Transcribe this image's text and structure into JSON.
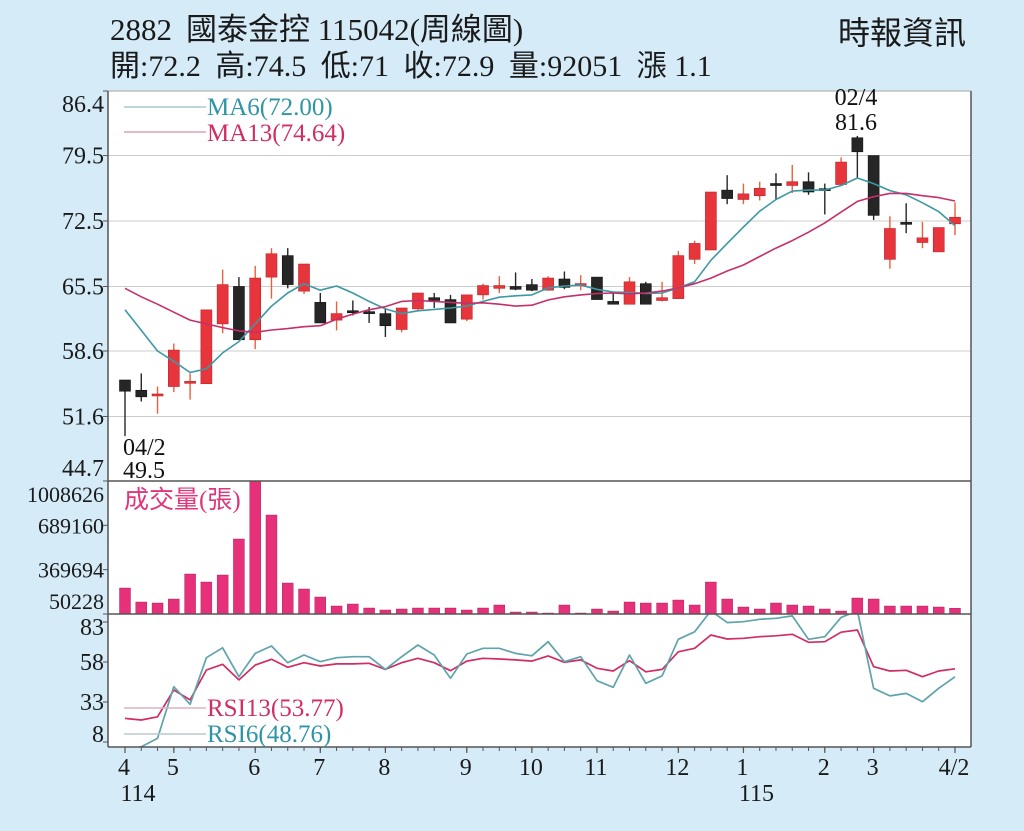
{
  "header": {
    "code": "2882",
    "name": "國泰金控",
    "date": "115042",
    "period": "(周線圖)",
    "source": "時報資訊",
    "quote": [
      {
        "label": "開:",
        "value": "72.2"
      },
      {
        "label": "高:",
        "value": "74.5"
      },
      {
        "label": "低:",
        "value": "71"
      },
      {
        "label": "收:",
        "value": "72.9"
      },
      {
        "label": "量:",
        "value": "92051"
      },
      {
        "label": "漲 ",
        "value": "1.1"
      }
    ]
  },
  "colors": {
    "background": "#d5ebf8",
    "plot_bg": "#ffffff",
    "up": "#e8353c",
    "up_edge": "#b8262c",
    "up_wick": "#e8603c",
    "down": "#262626",
    "grid": "#cccccc",
    "frame": "#555555"
  },
  "chart_data": [
    {
      "id": "price",
      "type": "candlestick",
      "title": "2882 國泰金控 115042(周線圖)",
      "xlabel": "",
      "ylabel": "",
      "ylim": [
        44.7,
        86.4
      ],
      "yticks": [
        86.4,
        79.5,
        72.5,
        65.5,
        58.6,
        51.6,
        44.7
      ],
      "grid": true,
      "ohlc_fields": [
        "open",
        "high",
        "low",
        "close"
      ],
      "ohlc": [
        [
          55.5,
          55.5,
          49.5,
          54.3
        ],
        [
          54.4,
          56.2,
          53.2,
          53.7
        ],
        [
          53.8,
          54.8,
          51.9,
          54.0
        ],
        [
          54.8,
          59.4,
          54.2,
          58.7
        ],
        [
          55.2,
          56.2,
          53.4,
          55.3
        ],
        [
          55.1,
          63.0,
          55.1,
          63.0
        ],
        [
          61.5,
          67.3,
          60.5,
          65.7
        ],
        [
          65.5,
          66.5,
          59.8,
          59.8
        ],
        [
          59.8,
          67.7,
          58.8,
          66.4
        ],
        [
          66.5,
          69.6,
          64.2,
          69.0
        ],
        [
          68.8,
          69.6,
          65.3,
          65.7
        ],
        [
          65.0,
          67.9,
          64.7,
          67.9
        ],
        [
          63.8,
          64.8,
          61.6,
          61.6
        ],
        [
          61.9,
          63.9,
          60.8,
          62.6
        ],
        [
          62.9,
          64.0,
          62.4,
          62.7
        ],
        [
          62.8,
          63.3,
          61.6,
          62.6
        ],
        [
          62.6,
          63.2,
          60.1,
          61.3
        ],
        [
          60.9,
          63.2,
          60.6,
          63.2
        ],
        [
          63.1,
          64.8,
          63.0,
          64.8
        ],
        [
          64.3,
          64.8,
          63.2,
          64.0
        ],
        [
          64.1,
          64.6,
          61.6,
          61.6
        ],
        [
          62.0,
          64.6,
          61.8,
          64.6
        ],
        [
          64.6,
          65.8,
          64.1,
          65.6
        ],
        [
          65.3,
          66.6,
          64.8,
          65.6
        ],
        [
          65.5,
          67.0,
          65.1,
          65.2
        ],
        [
          65.7,
          66.3,
          65.0,
          65.1
        ],
        [
          65.1,
          66.6,
          65.1,
          66.4
        ],
        [
          66.3,
          67.1,
          65.2,
          65.4
        ],
        [
          65.6,
          66.7,
          65.1,
          65.8
        ],
        [
          66.5,
          66.5,
          64.1,
          64.1
        ],
        [
          63.9,
          64.9,
          63.6,
          63.6
        ],
        [
          63.6,
          66.5,
          63.6,
          66.0
        ],
        [
          65.8,
          66.0,
          63.6,
          63.6
        ],
        [
          64.0,
          66.0,
          63.9,
          64.3
        ],
        [
          64.2,
          69.3,
          64.2,
          68.8
        ],
        [
          68.4,
          70.4,
          67.9,
          70.1
        ],
        [
          69.4,
          75.6,
          69.4,
          75.6
        ],
        [
          75.8,
          77.4,
          74.3,
          74.9
        ],
        [
          74.8,
          76.5,
          74.3,
          75.4
        ],
        [
          75.2,
          76.7,
          74.7,
          76.0
        ],
        [
          76.5,
          77.6,
          74.8,
          76.3
        ],
        [
          76.3,
          78.5,
          75.5,
          76.7
        ],
        [
          76.7,
          77.7,
          75.3,
          75.6
        ],
        [
          75.9,
          76.5,
          73.2,
          75.8
        ],
        [
          76.4,
          79.3,
          76.4,
          78.8
        ],
        [
          81.4,
          81.6,
          77.1,
          79.9
        ],
        [
          79.5,
          79.5,
          72.6,
          73.1
        ],
        [
          68.4,
          73.0,
          67.4,
          71.7
        ],
        [
          72.3,
          74.4,
          71.2,
          72.2
        ],
        [
          70.2,
          72.4,
          69.6,
          70.7
        ],
        [
          69.2,
          71.8,
          69.2,
          71.8
        ],
        [
          72.2,
          74.5,
          71.0,
          72.9
        ]
      ],
      "series": [
        {
          "name": "MA6",
          "color": "#3b98a4",
          "values": [
            63.0,
            60.8,
            58.6,
            57.5,
            56.3,
            56.7,
            58.4,
            59.6,
            61.5,
            63.4,
            64.8,
            65.8,
            65.1,
            65.55,
            64.8,
            63.9,
            63.1,
            62.6,
            62.9,
            63.05,
            63.2,
            63.4,
            63.9,
            64.35,
            64.5,
            64.6,
            65.35,
            65.55,
            65.65,
            65.2,
            64.9,
            64.85,
            64.75,
            64.8,
            65.35,
            66.0,
            68.3,
            70.1,
            71.85,
            73.55,
            74.8,
            75.7,
            75.8,
            75.8,
            76.3,
            77.1,
            76.5,
            75.75,
            75.3,
            74.45,
            73.5,
            72.0
          ]
        },
        {
          "name": "MA13",
          "color": "#c62f6a",
          "values": [
            65.3,
            64.4,
            63.6,
            62.75,
            61.9,
            61.5,
            61.1,
            60.75,
            60.6,
            60.85,
            61.0,
            61.2,
            61.3,
            62.0,
            62.55,
            63.0,
            63.35,
            63.9,
            64.0,
            63.9,
            63.8,
            63.7,
            63.75,
            63.6,
            63.4,
            63.5,
            64.05,
            64.4,
            64.6,
            64.75,
            64.8,
            64.7,
            64.8,
            65.0,
            65.35,
            65.8,
            66.4,
            67.15,
            67.8,
            68.7,
            69.6,
            70.4,
            71.3,
            72.3,
            73.45,
            74.6,
            75.1,
            75.45,
            75.45,
            75.2,
            75.0,
            74.64
          ]
        }
      ],
      "legend": [
        {
          "label": "MA6(72.00)",
          "color": "#2f95a6",
          "line_color": "#a9c8cb"
        },
        {
          "label": "MA13(74.64)",
          "color": "#d02c66",
          "line_color": "#d8a3b8"
        }
      ],
      "annotations": [
        {
          "index": 45,
          "kind": "high",
          "date": "02/4",
          "value": "81.6"
        },
        {
          "index": 0,
          "kind": "low",
          "date": "04/2",
          "value": "49.5"
        }
      ]
    },
    {
      "id": "volume",
      "type": "bar",
      "title": "成交量(張)",
      "color": "#e6307a",
      "label_color": "#e0357a",
      "ylim": [
        50228,
        1008626
      ],
      "yticks": [
        1008626,
        689160,
        369694,
        50228
      ],
      "values": [
        237600,
        136700,
        129500,
        158300,
        338500,
        280800,
        331300,
        590700,
        1008626,
        763600,
        273600,
        230400,
        172700,
        107900,
        122300,
        93500,
        79100,
        86300,
        93500,
        93500,
        93500,
        79100,
        93500,
        115100,
        64600,
        64600,
        50228,
        115100,
        57400,
        86300,
        71800,
        136700,
        129500,
        129500,
        151100,
        115100,
        280800,
        158300,
        100700,
        86300,
        129500,
        115100,
        107900,
        86300,
        71800,
        165500,
        158300,
        107900,
        107900,
        107900,
        100700,
        92051
      ]
    },
    {
      "id": "rsi",
      "type": "line",
      "title": "RSI",
      "ylim": [
        4.9,
        88
      ],
      "yticks": [
        83,
        58,
        33,
        8
      ],
      "series": [
        {
          "name": "RSI13",
          "color": "#cf2d63",
          "values": [
            22.8,
            21.8,
            23.8,
            40.5,
            34.3,
            53,
            56.6,
            46.8,
            56.1,
            59.7,
            54.7,
            57.6,
            55.5,
            56.8,
            56.8,
            57.2,
            53.4,
            57.6,
            60.3,
            57.6,
            52.6,
            58.6,
            60.3,
            59.9,
            59.3,
            58.6,
            61.8,
            57.8,
            59.3,
            54.1,
            52.4,
            58.8,
            51.9,
            53.4,
            64.4,
            66.6,
            74.9,
            72.4,
            72.8,
            73.8,
            74.4,
            75.3,
            70.3,
            70.7,
            76.6,
            78,
            55.1,
            52.4,
            52.8,
            48.8,
            52.4,
            53.77
          ]
        },
        {
          "name": "RSI6",
          "color": "#5fa3ab",
          "values": [
            3,
            5.1,
            10.3,
            42.6,
            31.6,
            60.7,
            66.9,
            48.8,
            63.4,
            68,
            57.6,
            62.4,
            58.2,
            60.7,
            61.3,
            61.3,
            53.4,
            61.3,
            68.6,
            62.4,
            47.8,
            63,
            66.6,
            66.6,
            63.4,
            61.9,
            70.7,
            58.2,
            61.3,
            46.3,
            42.2,
            62.4,
            44.7,
            49.3,
            72.2,
            76.9,
            90,
            82.6,
            83.2,
            84.7,
            85.3,
            86.8,
            72.2,
            73.8,
            85.9,
            90,
            41.6,
            36.8,
            38.4,
            33.2,
            41.6,
            48.76
          ]
        }
      ],
      "legend": [
        {
          "label": "RSI13(53.77)",
          "color": "#d02c66",
          "line_color": "#ddb0c0"
        },
        {
          "label": "RSI6(48.76)",
          "color": "#2f95a6",
          "line_color": "#b9c9cb"
        }
      ],
      "x_ticks": [
        {
          "i": 0,
          "text": "4",
          "sub": "114"
        },
        {
          "i": 3,
          "text": "5"
        },
        {
          "i": 8,
          "text": "6"
        },
        {
          "i": 12,
          "text": "7"
        },
        {
          "i": 16,
          "text": "8"
        },
        {
          "i": 21,
          "text": "9"
        },
        {
          "i": 25,
          "text": "10"
        },
        {
          "i": 29,
          "text": "11"
        },
        {
          "i": 34,
          "text": "12"
        },
        {
          "i": 38,
          "text": "1",
          "sub": "115"
        },
        {
          "i": 43,
          "text": "2"
        },
        {
          "i": 46,
          "text": "3"
        },
        {
          "i": 51,
          "text": "4/2"
        }
      ]
    }
  ]
}
